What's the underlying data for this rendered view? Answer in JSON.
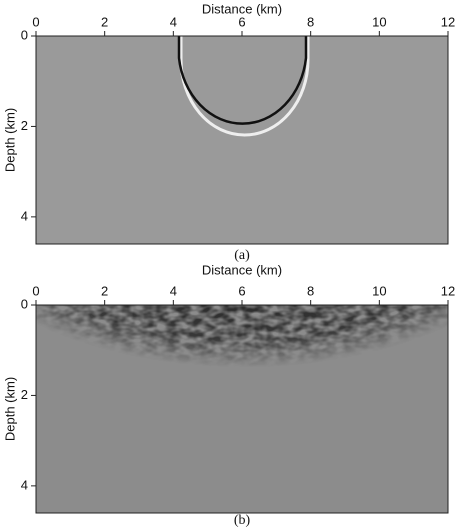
{
  "chart_data": [
    {
      "type": "image",
      "caption": "(a)",
      "x_label": "Distance (km)",
      "y_label": "Depth (km)",
      "xlim": [
        0,
        12
      ],
      "xticks": [
        0,
        2,
        4,
        6,
        8,
        10,
        12
      ],
      "ylim": [
        0,
        4.6
      ],
      "yticks": [
        0,
        2,
        4
      ],
      "y_inverted": true,
      "x_axis_position": "top"
    },
    {
      "type": "image",
      "caption": "(b)",
      "x_label": "Distance (km)",
      "y_label": "Depth (km)",
      "xlim": [
        0,
        12
      ],
      "xticks": [
        0,
        2,
        4,
        6,
        8,
        10,
        12
      ],
      "ylim": [
        0,
        4.6
      ],
      "yticks": [
        0,
        2,
        4
      ],
      "y_inverted": true,
      "x_axis_position": "top"
    }
  ]
}
